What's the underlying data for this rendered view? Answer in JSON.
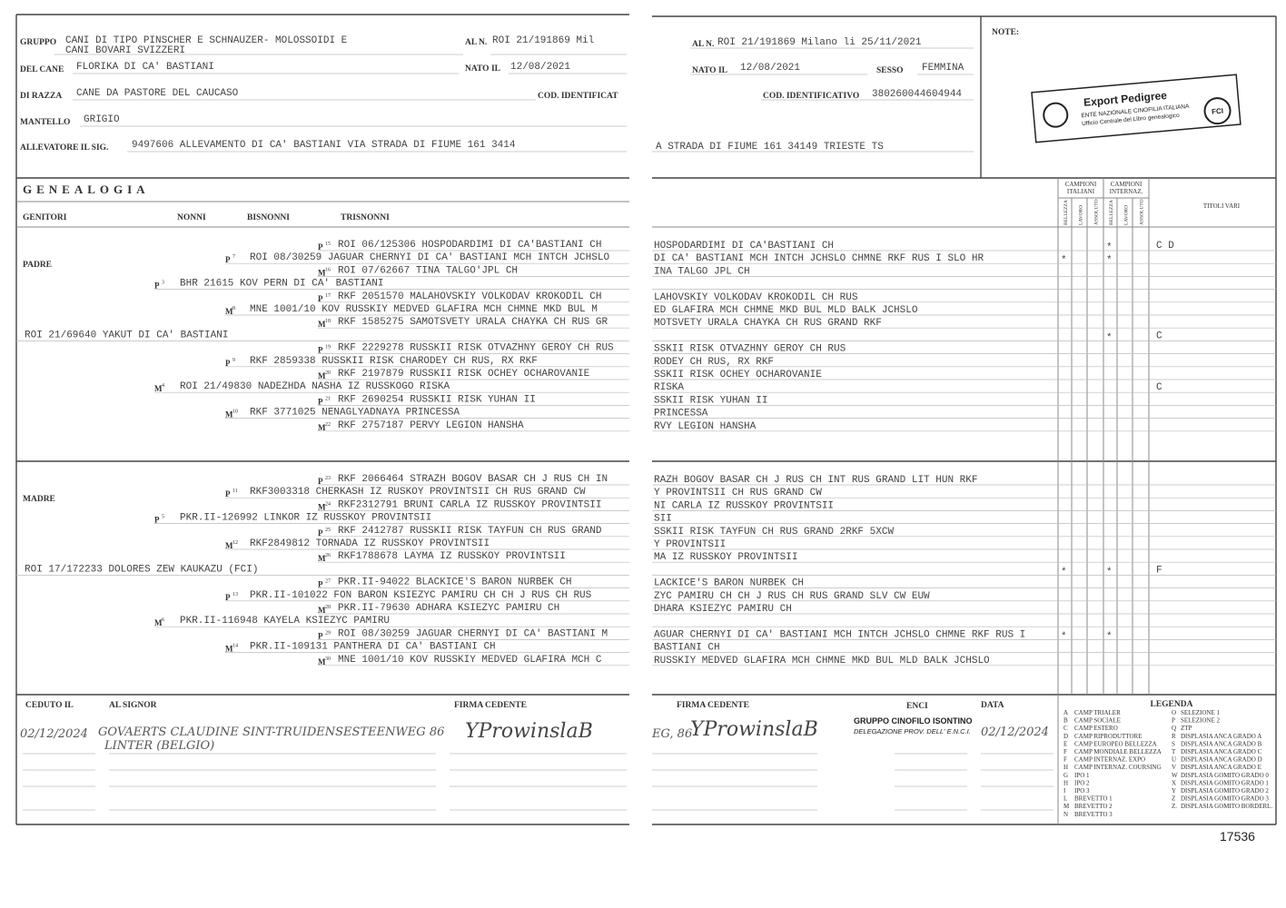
{
  "left_header": {
    "gruppo_label": "GRUPPO",
    "gruppo": [
      "CANI DI TIPO PINSCHER E SCHNAUZER- MOLOSSOIDI E",
      "CANI BOVARI SVIZZERI"
    ],
    "al_n_label": "AL N.",
    "al_n": "ROI 21/191869 Mil",
    "cane_label": "DEL CANE",
    "cane": "FLORIKA DI CA' BASTIANI",
    "nato_label": "NATO IL",
    "nato": "12/08/2021",
    "razza_label": "DI RAZZA",
    "razza": "CANE DA PASTORE DEL CAUCASO",
    "cod_label": "COD. IDENTIFICAT",
    "mantello_label": "MANTELLO",
    "mantello": "GRIGIO",
    "allevatore_label": "ALLEVATORE IL SIG.",
    "allevatore": "9497606 ALLEVAMENTO DI CA' BASTIANI VIA STRADA DI FIUME 161 3414"
  },
  "right_header": {
    "al_n_label": "AL N.",
    "al_n": "ROI 21/191869  Milano li 25/11/2021",
    "nato_label": "NATO IL",
    "nato": "12/08/2021",
    "sesso_label": "SESSO",
    "sesso": "FEMMINA",
    "cod_label": "COD. IDENTIFICATIVO",
    "cod": "380260044604944",
    "allevatore": "A STRADA DI FIUME 161 34149 TRIESTE  TS",
    "note_label": "NOTE:"
  },
  "stamp": {
    "title": "Export Pedigree",
    "line1": "ENTE NAZIONALE CINOFILIA ITALIANA",
    "line2": "Ufficio Centrale del Libro genealogico",
    "badge": "FCI"
  },
  "genealogy": {
    "title": "GENEALOGIA",
    "columns": [
      "GENITORI",
      "NONNI",
      "BISNONNI",
      "TRISNONNI"
    ],
    "campioni": [
      {
        "title": [
          "CAMPIONI",
          "ITALIANI"
        ],
        "cols": [
          "BELLEZZA",
          "LAVORO",
          "ASSOLUTO"
        ]
      },
      {
        "title": [
          "CAMPIONI",
          "INTERNAZ."
        ],
        "cols": [
          "BELLEZZA",
          "LAVORO",
          "ASSOLUTO"
        ]
      }
    ],
    "titoli": "TITOLI VARI",
    "blocks": [
      {
        "label": "PADRE",
        "rows": [
          {
            "sign": "P",
            "num": "15",
            "text": "ROI 06/125306 HOSPODARDIMI DI CA'BASTIANI CH",
            "cont": "HOSPODARDIMI DI CA'BASTIANI CH",
            "int": "*",
            "titoli": "C D"
          },
          {
            "sign": "P",
            "num": "7",
            "text": "ROI 08/30259 JAGUAR CHERNYI DI CA' BASTIANI MCH INTCH JCHSLO",
            "cont": "DI CA' BASTIANI MCH INTCH JCHSLO CHMNE RKF RUS I SLO HR",
            "ita": "*",
            "int": "*"
          },
          {
            "sign": "M",
            "num": "16",
            "text": "ROI 07/62667 TINA TALGO'JPL CH",
            "cont": "INA TALGO JPL CH"
          },
          {
            "sign": "P",
            "num": "3",
            "text": "BHR 21615 KOV PERN DI CA' BASTIANI"
          },
          {
            "sign": "P",
            "num": "17",
            "text": "RKF 2051570 MALAHOVSKIY VOLKODAV KROKODIL CH",
            "cont": "LAHOVSKIY VOLKODAV KROKODIL CH RUS"
          },
          {
            "sign": "M",
            "num": "8",
            "text": "MNE 1001/10 KOV RUSSKIY MEDVED GLAFIRA MCH  CHMNE MKD BUL M",
            "cont": "ED GLAFIRA MCH  CHMNE MKD BUL MLD BALK JCHSLO"
          },
          {
            "sign": "M",
            "num": "18",
            "text": "RKF 1585275 SAMOTSVETY URALA CHAYKA CH RUS GR",
            "cont": "MOTSVETY URALA CHAYKA CH RUS GRAND RKF"
          },
          {
            "text": "ROI 21/69640 YAKUT DI CA' BASTIANI",
            "int": "*",
            "titoli": "C"
          },
          {
            "sign": "P",
            "num": "19",
            "text": "RKF 2229278 RUSSKII RISK OTVAZHNY GEROY CH RUS",
            "cont": "SSKII RISK OTVAZHNY GEROY CH RUS"
          },
          {
            "sign": "P",
            "num": "9",
            "text": "RKF 2859338 RUSSKII RISK CHARODEY CH RUS, RX RKF",
            "cont": "RODEY CH RUS, RX RKF"
          },
          {
            "sign": "M",
            "num": "20",
            "text": "RKF 2197879 RUSSKII RISK OCHEY OCHAROVANIE",
            "cont": "SSKII RISK OCHEY OCHAROVANIE"
          },
          {
            "sign": "M",
            "num": "4",
            "text": "ROI 21/49830 NADEZHDA NASHA IZ RUSSKOGO RISKA",
            "cont": "RISKA",
            "titoli": "C"
          },
          {
            "sign": "P",
            "num": "21",
            "text": "RKF 2690254 RUSSKII RISK YUHAN II",
            "cont": "SSKII RISK YUHAN II"
          },
          {
            "sign": "M",
            "num": "10",
            "text": "RKF 3771025 NENAGLYADNAYA PRINCESSA",
            "cont": "PRINCESSA"
          },
          {
            "sign": "M",
            "num": "22",
            "text": "RKF 2757187 PERVY LEGION HANSHA",
            "cont": "RVY LEGION HANSHA"
          }
        ]
      },
      {
        "label": "MADRE",
        "rows": [
          {
            "sign": "P",
            "num": "23",
            "text": "RKF 2066464 STRAZH BOGOV BASAR CH J RUS CH IN",
            "cont": "RAZH BOGOV BASAR CH J RUS CH INT RUS GRAND LIT HUN RKF"
          },
          {
            "sign": "P",
            "num": "11",
            "text": "RKF3003318 CHERKASH IZ RUSKOY PROVINTSII  CH RUS GRAND CW",
            "cont": "Y PROVINTSII  CH RUS GRAND CW"
          },
          {
            "sign": "M",
            "num": "24",
            "text": "RKF2312791 BRUNI CARLA IZ RUSSKOY PROVINTSII",
            "cont": "NI CARLA IZ RUSSKOY PROVINTSII"
          },
          {
            "sign": "P",
            "num": "5",
            "text": "PKR.II-126992 LINKOR IZ RUSSKOY PROVINTSII",
            "cont": "SII"
          },
          {
            "sign": "P",
            "num": "25",
            "text": "RKF 2412787 RUSSKII RISK TAYFUN CH RUS GRAND",
            "cont": "SSKII RISK TAYFUN CH RUS GRAND 2RKF 5XCW"
          },
          {
            "sign": "M",
            "num": "12",
            "text": "RKF2849812 TORNADA IZ RUSSKOY PROVINTSII",
            "cont": "Y PROVINTSII"
          },
          {
            "sign": "M",
            "num": "26",
            "text": "RKF1788678 LAYMA IZ RUSSKOY PROVINTSII",
            "cont": "MA IZ RUSSKOY PROVINTSII"
          },
          {
            "text": "ROI 17/172233 DOLORES ZEW KAUKAZU (FCI)",
            "ita": "*",
            "int": "*",
            "titoli": "F"
          },
          {
            "sign": "P",
            "num": "27",
            "text": "PKR.II-94022 BLACKICE'S BARON NURBEK CH",
            "cont": "LACKICE'S BARON NURBEK CH"
          },
          {
            "sign": "P",
            "num": "13",
            "text": "PKR.II-101022 FON BARON KSIEZYC PAMIRU CH  CH J RUS CH RUS",
            "cont": "ZYC PAMIRU CH  CH J RUS CH RUS GRAND SLV CW EUW"
          },
          {
            "sign": "M",
            "num": "28",
            "text": "PKR.II-79630 ADHARA KSIEZYC PAMIRU CH",
            "cont": "DHARA KSIEZYC PAMIRU CH"
          },
          {
            "sign": "M",
            "num": "6",
            "text": "PKR.II-116948 KAYELA KSIEZYC PAMIRU"
          },
          {
            "sign": "P",
            "num": "29",
            "text": "ROI 08/30259 JAGUAR CHERNYI DI CA' BASTIANI M",
            "cont": "AGUAR CHERNYI DI CA' BASTIANI MCH INTCH JCHSLO CHMNE RKF RUS I",
            "ita": "*",
            "int": "*"
          },
          {
            "sign": "M",
            "num": "14",
            "text": "PKR.II-109131 PANTHERA DI CA' BASTIANI  CH",
            "cont": "BASTIANI  CH"
          },
          {
            "sign": "M",
            "num": "30",
            "text": "MNE 1001/10 KOV RUSSKIY MEDVED GLAFIRA MCH  C",
            "cont": "RUSSKIY MEDVED GLAFIRA MCH  CHMNE MKD BUL MLD BALK JCHSLO"
          }
        ]
      }
    ]
  },
  "footer": {
    "ceduto_label": "CEDUTO IL",
    "signor_label": "AL SIGNOR",
    "firma_label": "FIRMA CEDENTE",
    "ceduto": "02/12/2024",
    "signor": [
      "GOVAERTS CLAUDINE SINT-TRUIDENSESTEENWEG 86",
      "LINTER (BELGIO)"
    ],
    "firma": "YProwinslaB",
    "right_firma_label": "FIRMA CEDENTE",
    "right_addr": "EG, 86",
    "right_firma": "YProwinslaB",
    "enci_label": "ENCI",
    "gruppo_stamp": "GRUPPO CINOFILO ISONTINO",
    "delegazione": "DELEGAZIONE PROV. DELL' E.N.C.I.",
    "data_label": "DATA",
    "data": "02/12/2024"
  },
  "legend": {
    "title": "LEGENDA",
    "left": [
      [
        "A",
        "CAMP TRIALER"
      ],
      [
        "B",
        "CAMP SOCIALE"
      ],
      [
        "C",
        "CAMP ESTERO"
      ],
      [
        "D",
        "CAMP RIPRODUTTORE"
      ],
      [
        "E",
        "CAMP EUROPEO BELLEZZA"
      ],
      [
        "F",
        "CAMP MONDIALE BELLEZZA"
      ],
      [
        "F",
        "CAMP INTERNAZ. EXPO"
      ],
      [
        "H",
        "CAMP INTERNAZ. COURSING"
      ],
      [
        "G",
        "IPO 1"
      ],
      [
        "H",
        "IPO 2"
      ],
      [
        "I",
        "IPO 3"
      ],
      [
        "L",
        "BREVETTO 1"
      ],
      [
        "M",
        "BREVETTO 2"
      ],
      [
        "N",
        "BREVETTO 3"
      ]
    ],
    "right": [
      [
        "O",
        "SELEZIONE 1"
      ],
      [
        "P",
        "SELEZIONE 2"
      ],
      [
        "Q",
        "ZTP"
      ],
      [
        "R",
        "DISPLASIA ANCA GRADO A"
      ],
      [
        "S",
        "DISPLASIA ANCA GRADO B"
      ],
      [
        "T",
        "DISPLASIA ANCA GRADO C"
      ],
      [
        "U",
        "DISPLASIA ANCA GRADO D"
      ],
      [
        "V",
        "DISPLASIA ANCA GRADO E"
      ],
      [
        "W",
        "DISPLASIA GOMITO GRADO 0"
      ],
      [
        "X",
        "DISPLASIA GOMITO GRADO 1"
      ],
      [
        "Y",
        "DISPLASIA GOMITO GRADO 2"
      ],
      [
        "Z",
        "DISPLASIA GOMITO GRADO 3"
      ],
      [
        "Z.",
        "DISPLASIA GOMITO BORDERL."
      ]
    ]
  },
  "page_number": "17536"
}
